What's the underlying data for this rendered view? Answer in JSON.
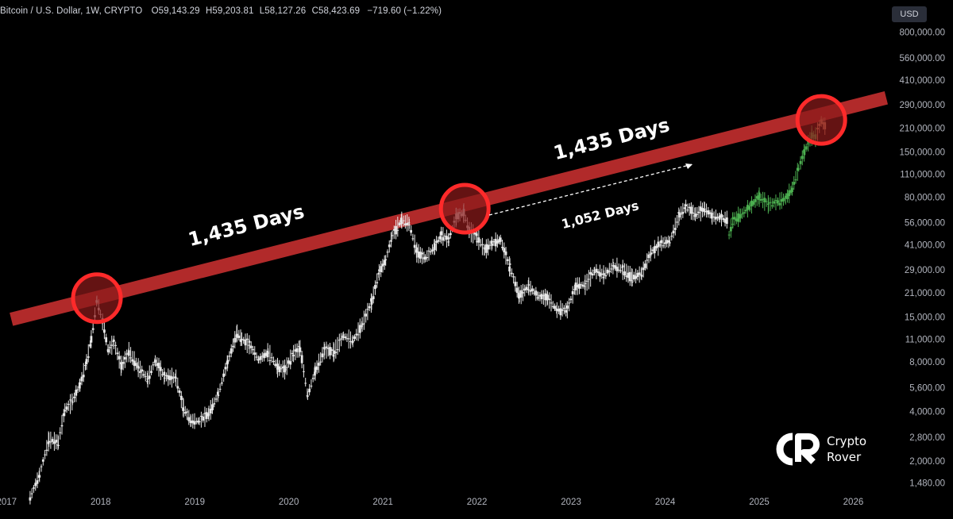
{
  "header": {
    "symbol": "Bitcoin / U.S. Dollar, 1W, CRYPTO",
    "o_label": "O",
    "o_value": "59,143.29",
    "h_label": "H",
    "h_value": "59,203.81",
    "l_label": "L",
    "l_value": "58,127.26",
    "c_label": "C",
    "c_value": "58,423.69",
    "change": "−719.60 (−1.22%)"
  },
  "currency_button": "USD",
  "logo": {
    "line1": "Crypto",
    "line2": "Rover"
  },
  "colors": {
    "background": "#000000",
    "candles": "#e8e8e8",
    "projection": "#4caf50",
    "projection_end": "#d4956a",
    "trendline": "#b12a2a",
    "circle_stroke": "#ff2a2a",
    "circle_fill": "#8b1a1a"
  },
  "chart_data": {
    "type": "line",
    "scale": "log",
    "x_tick_labels": [
      "2017",
      "2018",
      "2019",
      "2020",
      "2021",
      "2022",
      "2023",
      "2024",
      "2025",
      "2026"
    ],
    "y_tick_values": [
      800000,
      560000,
      410000,
      290000,
      210000,
      150000,
      110000,
      80000,
      56000,
      41000,
      29000,
      21000,
      15000,
      11000,
      8000,
      5600,
      4000,
      2800,
      2000,
      1480
    ],
    "y_tick_labels": [
      "800,000.00",
      "560,000.00",
      "410,000.00",
      "290,000.00",
      "210,000.00",
      "150,000.00",
      "110,000.00",
      "80,000.00",
      "56,000.00",
      "41,000.00",
      "29,000.00",
      "21,000.00",
      "15,000.00",
      "11,000.00",
      "8,000.00",
      "5,600.00",
      "4,000.00",
      "2,800.00",
      "2,000.00",
      "1,480.00"
    ],
    "ylim": [
      1300,
      900000
    ],
    "xlim": [
      2016.93,
      2026.3
    ],
    "series": [
      {
        "role": "price",
        "points": [
          [
            2017.25,
            1200
          ],
          [
            2017.35,
            1650
          ],
          [
            2017.45,
            2700
          ],
          [
            2017.55,
            2600
          ],
          [
            2017.62,
            4100
          ],
          [
            2017.7,
            4600
          ],
          [
            2017.78,
            5800
          ],
          [
            2017.85,
            8000
          ],
          [
            2017.9,
            11000
          ],
          [
            2017.96,
            19000
          ],
          [
            2018.02,
            14000
          ],
          [
            2018.08,
            9500
          ],
          [
            2018.14,
            10500
          ],
          [
            2018.22,
            7500
          ],
          [
            2018.3,
            9200
          ],
          [
            2018.4,
            7400
          ],
          [
            2018.5,
            6300
          ],
          [
            2018.58,
            8100
          ],
          [
            2018.68,
            6500
          ],
          [
            2018.8,
            6400
          ],
          [
            2018.88,
            4200
          ],
          [
            2018.96,
            3500
          ],
          [
            2019.05,
            3500
          ],
          [
            2019.15,
            3900
          ],
          [
            2019.25,
            5100
          ],
          [
            2019.35,
            8000
          ],
          [
            2019.45,
            12000
          ],
          [
            2019.5,
            11000
          ],
          [
            2019.58,
            10200
          ],
          [
            2019.68,
            8200
          ],
          [
            2019.78,
            9200
          ],
          [
            2019.88,
            7400
          ],
          [
            2019.96,
            7200
          ],
          [
            2020.05,
            9000
          ],
          [
            2020.12,
            9700
          ],
          [
            2020.2,
            5000
          ],
          [
            2020.28,
            7000
          ],
          [
            2020.38,
            9500
          ],
          [
            2020.48,
            9200
          ],
          [
            2020.58,
            11500
          ],
          [
            2020.68,
            10700
          ],
          [
            2020.78,
            13500
          ],
          [
            2020.88,
            18500
          ],
          [
            2020.96,
            28000
          ],
          [
            2021.03,
            33000
          ],
          [
            2021.1,
            47000
          ],
          [
            2021.2,
            58000
          ],
          [
            2021.28,
            55000
          ],
          [
            2021.36,
            37000
          ],
          [
            2021.45,
            34000
          ],
          [
            2021.55,
            40000
          ],
          [
            2021.62,
            47000
          ],
          [
            2021.7,
            44000
          ],
          [
            2021.78,
            61000
          ],
          [
            2021.86,
            64000
          ],
          [
            2021.92,
            50000
          ],
          [
            2022.0,
            46000
          ],
          [
            2022.08,
            38000
          ],
          [
            2022.16,
            42000
          ],
          [
            2022.25,
            44000
          ],
          [
            2022.35,
            30000
          ],
          [
            2022.45,
            20000
          ],
          [
            2022.55,
            23000
          ],
          [
            2022.65,
            20000
          ],
          [
            2022.75,
            19500
          ],
          [
            2022.85,
            16500
          ],
          [
            2022.96,
            16600
          ],
          [
            2023.05,
            23000
          ],
          [
            2023.15,
            23500
          ],
          [
            2023.25,
            28500
          ],
          [
            2023.35,
            27000
          ],
          [
            2023.45,
            30500
          ],
          [
            2023.55,
            29000
          ],
          [
            2023.65,
            26000
          ],
          [
            2023.75,
            27500
          ],
          [
            2023.85,
            37000
          ],
          [
            2023.96,
            42000
          ],
          [
            2024.05,
            43000
          ],
          [
            2024.15,
            62000
          ],
          [
            2024.22,
            70000
          ],
          [
            2024.32,
            63000
          ],
          [
            2024.42,
            68000
          ],
          [
            2024.5,
            61000
          ],
          [
            2024.58,
            60000
          ],
          [
            2024.66,
            58400
          ]
        ]
      },
      {
        "role": "projection",
        "points": [
          [
            2024.68,
            47000
          ],
          [
            2024.72,
            58000
          ],
          [
            2024.8,
            62000
          ],
          [
            2024.9,
            70000
          ],
          [
            2025.0,
            80000
          ],
          [
            2025.1,
            72000
          ],
          [
            2025.2,
            75000
          ],
          [
            2025.28,
            78000
          ],
          [
            2025.35,
            90000
          ],
          [
            2025.42,
            120000
          ],
          [
            2025.48,
            150000
          ],
          [
            2025.52,
            170000
          ],
          [
            2025.56,
            190000
          ],
          [
            2025.6,
            185000
          ]
        ]
      },
      {
        "role": "projection-top",
        "points": [
          [
            2025.62,
            200000
          ],
          [
            2025.66,
            230000
          ],
          [
            2025.7,
            215000
          ]
        ]
      }
    ],
    "trendline": {
      "from": [
        2017.05,
        14500
      ],
      "to": [
        2026.35,
        320000
      ]
    },
    "peak_markers": [
      {
        "x": 2017.96,
        "y": 19500
      },
      {
        "x": 2021.87,
        "y": 68000
      },
      {
        "x": 2025.66,
        "y": 235000
      }
    ],
    "annotations": [
      {
        "text": "1,435 Days",
        "role": "big-label-1"
      },
      {
        "text": "1,435 Days",
        "role": "big-label-2"
      },
      {
        "text": "1,052 Days",
        "role": "small-label"
      }
    ]
  }
}
